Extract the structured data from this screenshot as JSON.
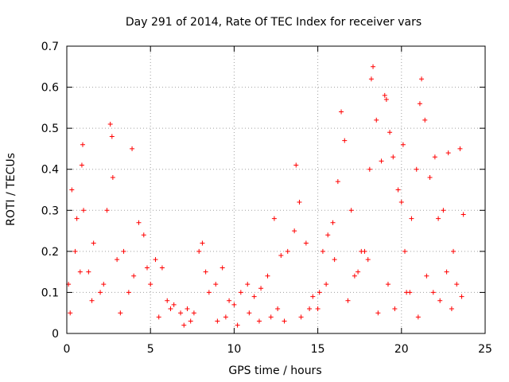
{
  "chart_data": {
    "type": "scatter",
    "title": "Day 291 of 2014, Rate Of TEC Index for receiver vars",
    "xlabel": "GPS time / hours",
    "ylabel": "ROTI / TECUs",
    "xlim": [
      0,
      25
    ],
    "ylim": [
      0,
      0.7
    ],
    "xticks": [
      "0",
      "5",
      "10",
      "15",
      "20",
      "25"
    ],
    "yticks": [
      "0",
      "0.1",
      "0.2",
      "0.3",
      "0.4",
      "0.5",
      "0.6",
      "0.7"
    ],
    "grid": true,
    "marker": "+",
    "color": "#ff0000",
    "series": [
      {
        "name": "vars",
        "x": [
          0.1,
          0.3,
          0.5,
          0.6,
          0.9,
          0.95,
          1.0,
          1.3,
          1.6,
          2.0,
          2.4,
          2.6,
          2.7,
          2.75,
          3.0,
          3.4,
          3.9,
          4.0,
          4.3,
          4.6,
          5.0,
          5.3,
          5.7,
          6.0,
          6.4,
          6.8,
          7.2,
          7.6,
          7.9,
          8.1,
          8.5,
          8.9,
          9.3,
          9.7,
          10.0,
          10.4,
          10.8,
          11.2,
          11.6,
          12.0,
          12.4,
          12.8,
          13.2,
          13.6,
          13.7,
          13.9,
          14.3,
          14.7,
          15.0,
          15.3,
          15.6,
          15.9,
          16.2,
          16.4,
          16.6,
          17.0,
          17.4,
          17.8,
          18.1,
          18.2,
          18.3,
          18.5,
          18.8,
          19.0,
          19.1,
          19.3,
          19.5,
          19.8,
          20.0,
          20.1,
          20.3,
          20.6,
          20.9,
          21.1,
          21.2,
          21.4,
          21.7,
          22.0,
          22.2,
          22.5,
          22.8,
          23.1,
          23.5,
          23.7,
          0.2,
          0.8,
          1.5,
          2.2,
          3.2,
          3.7,
          4.8,
          5.5,
          6.2,
          7.0,
          7.4,
          8.3,
          9.0,
          9.5,
          10.2,
          10.9,
          11.5,
          12.2,
          12.6,
          13.0,
          14.0,
          14.5,
          15.1,
          15.5,
          16.0,
          16.8,
          17.2,
          17.6,
          18.0,
          18.6,
          19.2,
          19.6,
          20.2,
          20.5,
          21.0,
          21.5,
          21.9,
          22.3,
          22.7,
          23.0,
          23.3,
          23.6
        ],
        "y": [
          0.12,
          0.35,
          0.2,
          0.28,
          0.41,
          0.46,
          0.3,
          0.15,
          0.22,
          0.1,
          0.3,
          0.51,
          0.48,
          0.38,
          0.18,
          0.2,
          0.45,
          0.14,
          0.27,
          0.24,
          0.12,
          0.18,
          0.16,
          0.08,
          0.07,
          0.05,
          0.06,
          0.05,
          0.2,
          0.22,
          0.1,
          0.12,
          0.16,
          0.08,
          0.07,
          0.1,
          0.12,
          0.09,
          0.11,
          0.14,
          0.28,
          0.19,
          0.2,
          0.25,
          0.41,
          0.32,
          0.22,
          0.09,
          0.06,
          0.2,
          0.24,
          0.27,
          0.37,
          0.54,
          0.47,
          0.3,
          0.15,
          0.2,
          0.4,
          0.62,
          0.65,
          0.52,
          0.42,
          0.58,
          0.57,
          0.49,
          0.43,
          0.35,
          0.32,
          0.46,
          0.1,
          0.28,
          0.4,
          0.56,
          0.62,
          0.52,
          0.38,
          0.43,
          0.28,
          0.3,
          0.44,
          0.2,
          0.45,
          0.29,
          0.05,
          0.15,
          0.08,
          0.12,
          0.05,
          0.1,
          0.16,
          0.04,
          0.06,
          0.02,
          0.03,
          0.15,
          0.03,
          0.04,
          0.02,
          0.05,
          0.03,
          0.04,
          0.06,
          0.03,
          0.04,
          0.06,
          0.1,
          0.12,
          0.18,
          0.08,
          0.14,
          0.2,
          0.18,
          0.05,
          0.12,
          0.06,
          0.2,
          0.1,
          0.04,
          0.14,
          0.1,
          0.08,
          0.15,
          0.06,
          0.12,
          0.09
        ]
      }
    ]
  }
}
